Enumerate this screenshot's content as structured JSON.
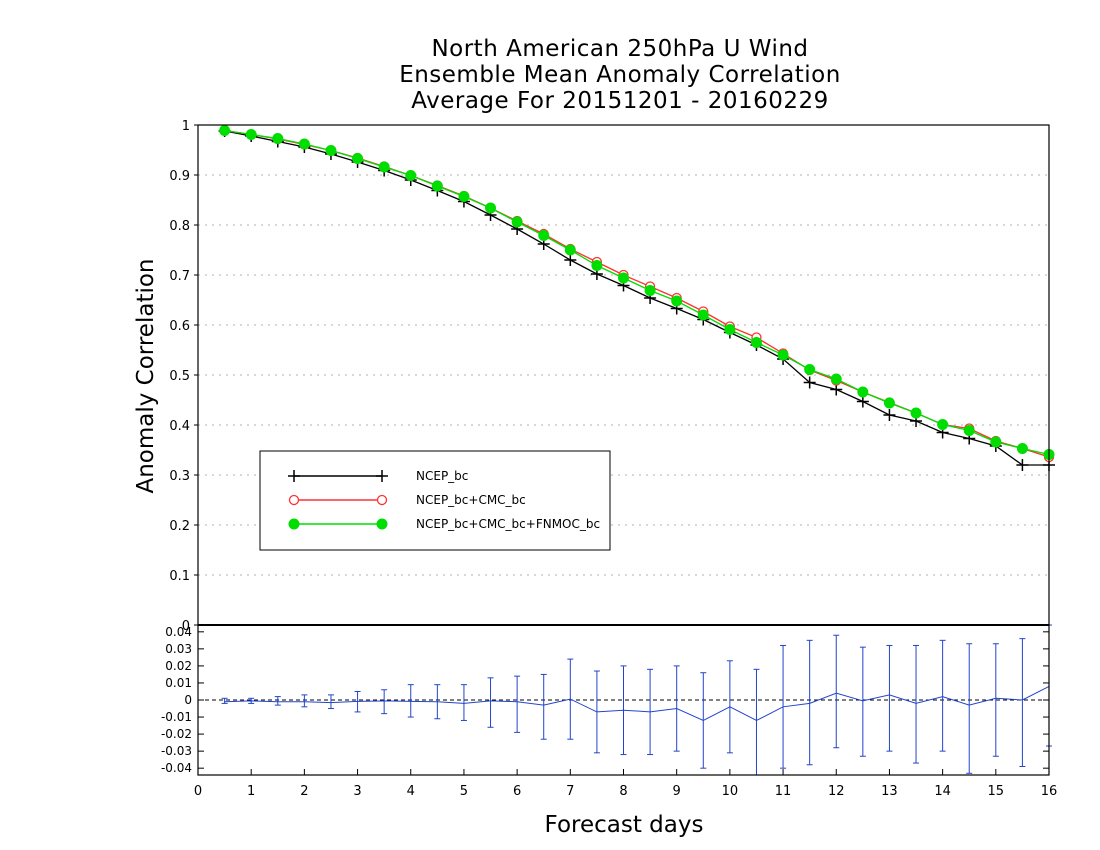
{
  "title": {
    "line1": "North American 250hPa U Wind",
    "line2": "Ensemble Mean Anomaly Correlation",
    "line3": "Average For 20151201 - 20160229"
  },
  "axes": {
    "ylabel": "Anomaly Correlation",
    "xlabel": "Forecast days"
  },
  "colors": {
    "ncep": "#000000",
    "cmc": "#ff3030",
    "fnmoc": "#00dd00",
    "diff": "#2244cc",
    "grid": "#b0b0b0"
  },
  "chart_data": [
    {
      "type": "line",
      "x": [
        0.5,
        1,
        1.5,
        2,
        2.5,
        3,
        3.5,
        4,
        4.5,
        5,
        5.5,
        6,
        6.5,
        7,
        7.5,
        8,
        8.5,
        9,
        9.5,
        10,
        10.5,
        11,
        11.5,
        12,
        12.5,
        13,
        13.5,
        14,
        14.5,
        15,
        15.5,
        16
      ],
      "xlim": [
        0,
        16
      ],
      "ylim": [
        0,
        1
      ],
      "y_ticks": [
        "0",
        "0.1",
        "0.2",
        "0.3",
        "0.4",
        "0.5",
        "0.6",
        "0.7",
        "0.8",
        "0.9",
        "1"
      ],
      "grid": true,
      "legend_position": "lower-left",
      "series": [
        {
          "name": "NCEP_bc",
          "marker": "plus",
          "color": "#000000",
          "values": [
            0.988,
            0.978,
            0.967,
            0.956,
            0.942,
            0.926,
            0.909,
            0.89,
            0.869,
            0.847,
            0.82,
            0.792,
            0.762,
            0.73,
            0.702,
            0.679,
            0.654,
            0.633,
            0.611,
            0.585,
            0.56,
            0.532,
            0.485,
            0.471,
            0.447,
            0.42,
            0.408,
            0.385,
            0.373,
            0.358,
            0.32,
            0.32
          ]
        },
        {
          "name": "NCEP_bc+CMC_bc",
          "marker": "open-circle",
          "color": "#ff3030",
          "values": [
            0.989,
            0.981,
            0.972,
            0.961,
            0.949,
            0.934,
            0.917,
            0.899,
            0.879,
            0.858,
            0.834,
            0.808,
            0.782,
            0.752,
            0.726,
            0.7,
            0.677,
            0.654,
            0.627,
            0.597,
            0.575,
            0.543,
            0.51,
            0.489,
            0.466,
            0.445,
            0.424,
            0.401,
            0.393,
            0.368,
            0.353,
            0.336
          ]
        },
        {
          "name": "NCEP_bc+CMC_bc+FNMOC_bc",
          "marker": "filled-circle",
          "color": "#00dd00",
          "values": [
            0.989,
            0.981,
            0.973,
            0.962,
            0.949,
            0.933,
            0.916,
            0.899,
            0.878,
            0.857,
            0.834,
            0.806,
            0.779,
            0.75,
            0.719,
            0.694,
            0.669,
            0.648,
            0.62,
            0.591,
            0.565,
            0.54,
            0.511,
            0.492,
            0.466,
            0.444,
            0.424,
            0.401,
            0.389,
            0.366,
            0.353,
            0.341
          ]
        }
      ]
    },
    {
      "type": "line",
      "x": [
        0.5,
        1,
        1.5,
        2,
        2.5,
        3,
        3.5,
        4,
        4.5,
        5,
        5.5,
        6,
        6.5,
        7,
        7.5,
        8,
        8.5,
        9,
        9.5,
        10,
        10.5,
        11,
        11.5,
        12,
        12.5,
        13,
        13.5,
        14,
        14.5,
        15,
        15.5,
        16
      ],
      "xlim": [
        0,
        16
      ],
      "ylim": [
        -0.044,
        0.044
      ],
      "x_ticks": [
        "0",
        "1",
        "2",
        "3",
        "4",
        "5",
        "6",
        "7",
        "8",
        "9",
        "10",
        "11",
        "12",
        "13",
        "14",
        "15",
        "16"
      ],
      "y_ticks": [
        "-0.04",
        "-0.03",
        "-0.02",
        "-0.01",
        "0",
        "0.01",
        "0.02",
        "0.03",
        "0.04"
      ],
      "series": [
        {
          "values": [
            -0.001,
            -0.0005,
            -0.001,
            -0.001,
            -0.0015,
            -0.0008,
            -0.0005,
            -0.0008,
            -0.001,
            -0.002,
            -0.0005,
            -0.001,
            -0.003,
            0.0005,
            -0.007,
            -0.006,
            -0.007,
            -0.005,
            -0.012,
            -0.004,
            -0.012,
            -0.004,
            -0.002,
            0.004,
            -0.0005,
            0.003,
            -0.002,
            0.002,
            -0.003,
            0.001,
            0,
            0.008
          ],
          "error_low": [
            -0.002,
            -0.002,
            -0.003,
            -0.004,
            -0.005,
            -0.007,
            -0.008,
            -0.01,
            -0.011,
            -0.012,
            -0.016,
            -0.019,
            -0.023,
            -0.023,
            -0.031,
            -0.032,
            -0.032,
            -0.03,
            -0.04,
            -0.031,
            -0.045,
            -0.04,
            -0.038,
            -0.028,
            -0.033,
            -0.03,
            -0.037,
            -0.03,
            -0.043,
            -0.033,
            -0.039,
            -0.027
          ],
          "error_high": [
            0.001,
            0.001,
            0.002,
            0.003,
            0.003,
            0.005,
            0.006,
            0.009,
            0.009,
            0.009,
            0.013,
            0.014,
            0.015,
            0.024,
            0.017,
            0.02,
            0.018,
            0.02,
            0.016,
            0.023,
            0.018,
            0.032,
            0.035,
            0.038,
            0.031,
            0.032,
            0.032,
            0.035,
            0.033,
            0.033,
            0.036,
            0.044
          ]
        }
      ]
    }
  ]
}
